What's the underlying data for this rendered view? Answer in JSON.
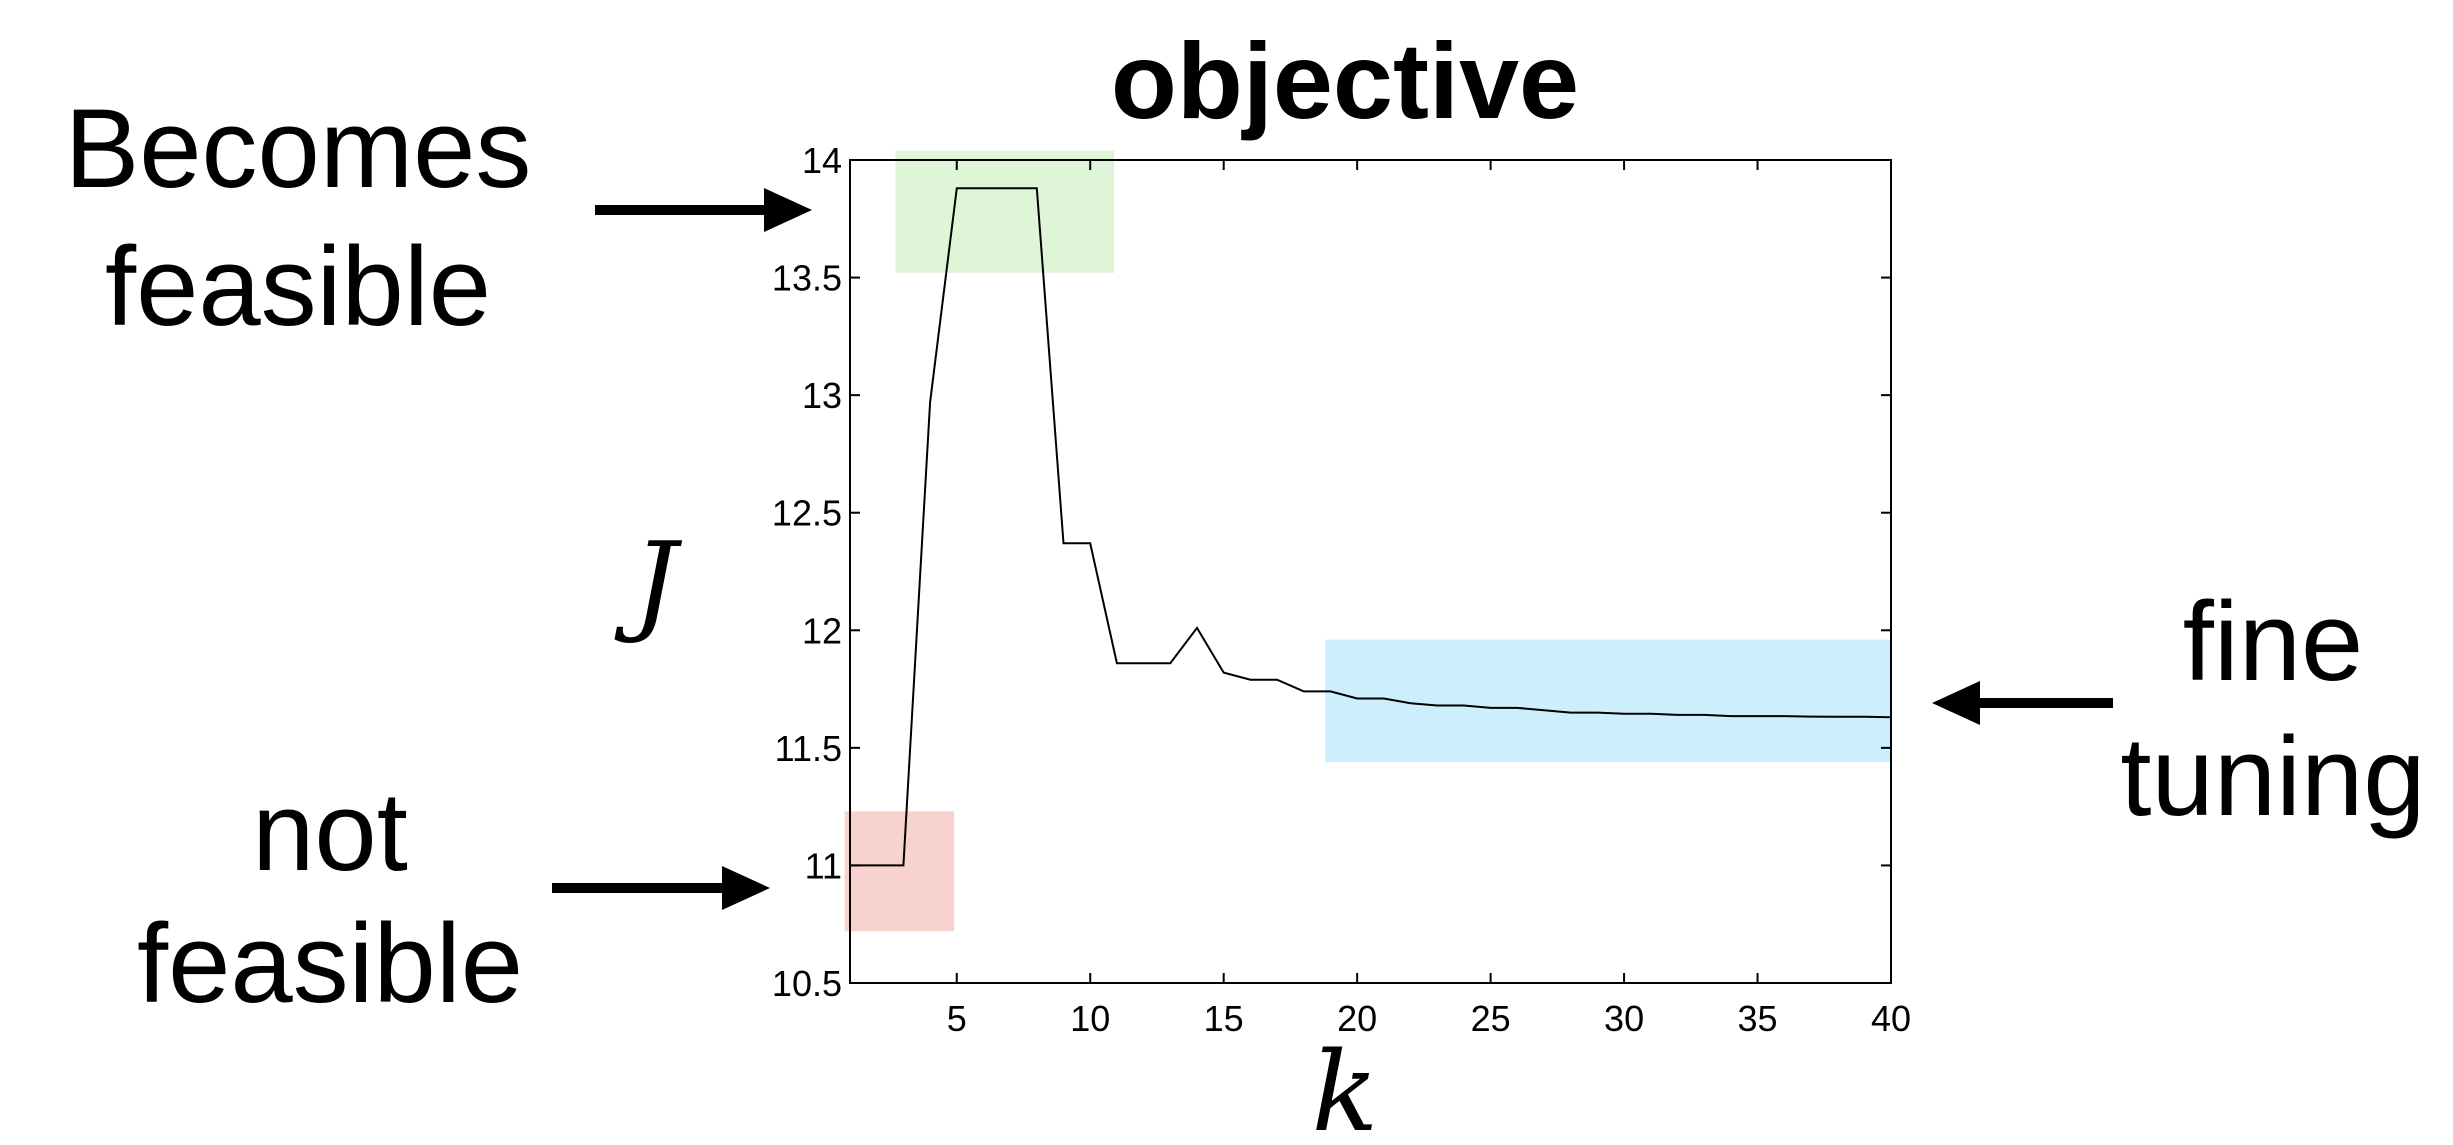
{
  "chart_data": {
    "type": "line",
    "title": "objective",
    "xlabel": "k",
    "ylabel": "J",
    "xlim": [
      1,
      40
    ],
    "ylim": [
      10.5,
      14
    ],
    "xticks": [
      5,
      10,
      15,
      20,
      25,
      30,
      35,
      40
    ],
    "yticks": [
      10.5,
      11,
      11.5,
      12,
      12.5,
      13,
      13.5,
      14
    ],
    "ytick_labels": [
      "10.5",
      "11",
      "11.5",
      "12",
      "12.5",
      "13",
      "13.5",
      "14"
    ],
    "grid": false,
    "line_color": "#000000",
    "series": [
      {
        "x": [
          1,
          2,
          3,
          4,
          5,
          6,
          7,
          8,
          9,
          10,
          11,
          12,
          13,
          14,
          15,
          16,
          17,
          18,
          19,
          20,
          21,
          22,
          23,
          24,
          25,
          26,
          27,
          28,
          29,
          30,
          31,
          32,
          33,
          34,
          35,
          36,
          37,
          38,
          39,
          40
        ],
        "values": [
          11.0,
          11.0,
          11.0,
          12.97,
          13.88,
          13.88,
          13.88,
          13.88,
          12.37,
          12.37,
          11.86,
          11.86,
          11.86,
          12.01,
          11.82,
          11.79,
          11.79,
          11.74,
          11.74,
          11.71,
          11.71,
          11.69,
          11.68,
          11.68,
          11.67,
          11.67,
          11.66,
          11.65,
          11.65,
          11.645,
          11.645,
          11.64,
          11.64,
          11.635,
          11.635,
          11.635,
          11.633,
          11.632,
          11.632,
          11.63
        ]
      }
    ],
    "highlights": [
      {
        "id": "becomes-feasible-box",
        "x": [
          2.7,
          10.9
        ],
        "y": [
          13.52,
          14.04
        ],
        "color": "#dff5d8"
      },
      {
        "id": "not-feasible-box",
        "x": [
          0.8,
          4.9
        ],
        "y": [
          10.72,
          11.23
        ],
        "color": "#f8d2cf"
      },
      {
        "id": "fine-tuning-box",
        "x": [
          18.8,
          40
        ],
        "y": [
          11.44,
          11.96
        ],
        "color": "#cdeefc"
      }
    ],
    "annotations": [
      {
        "id": "becomes-feasible",
        "lines": [
          "Becomes",
          "feasible"
        ]
      },
      {
        "id": "not-feasible",
        "lines": [
          "not",
          "feasible"
        ]
      },
      {
        "id": "fine-tuning",
        "lines": [
          "fine",
          "tuning"
        ]
      }
    ]
  }
}
